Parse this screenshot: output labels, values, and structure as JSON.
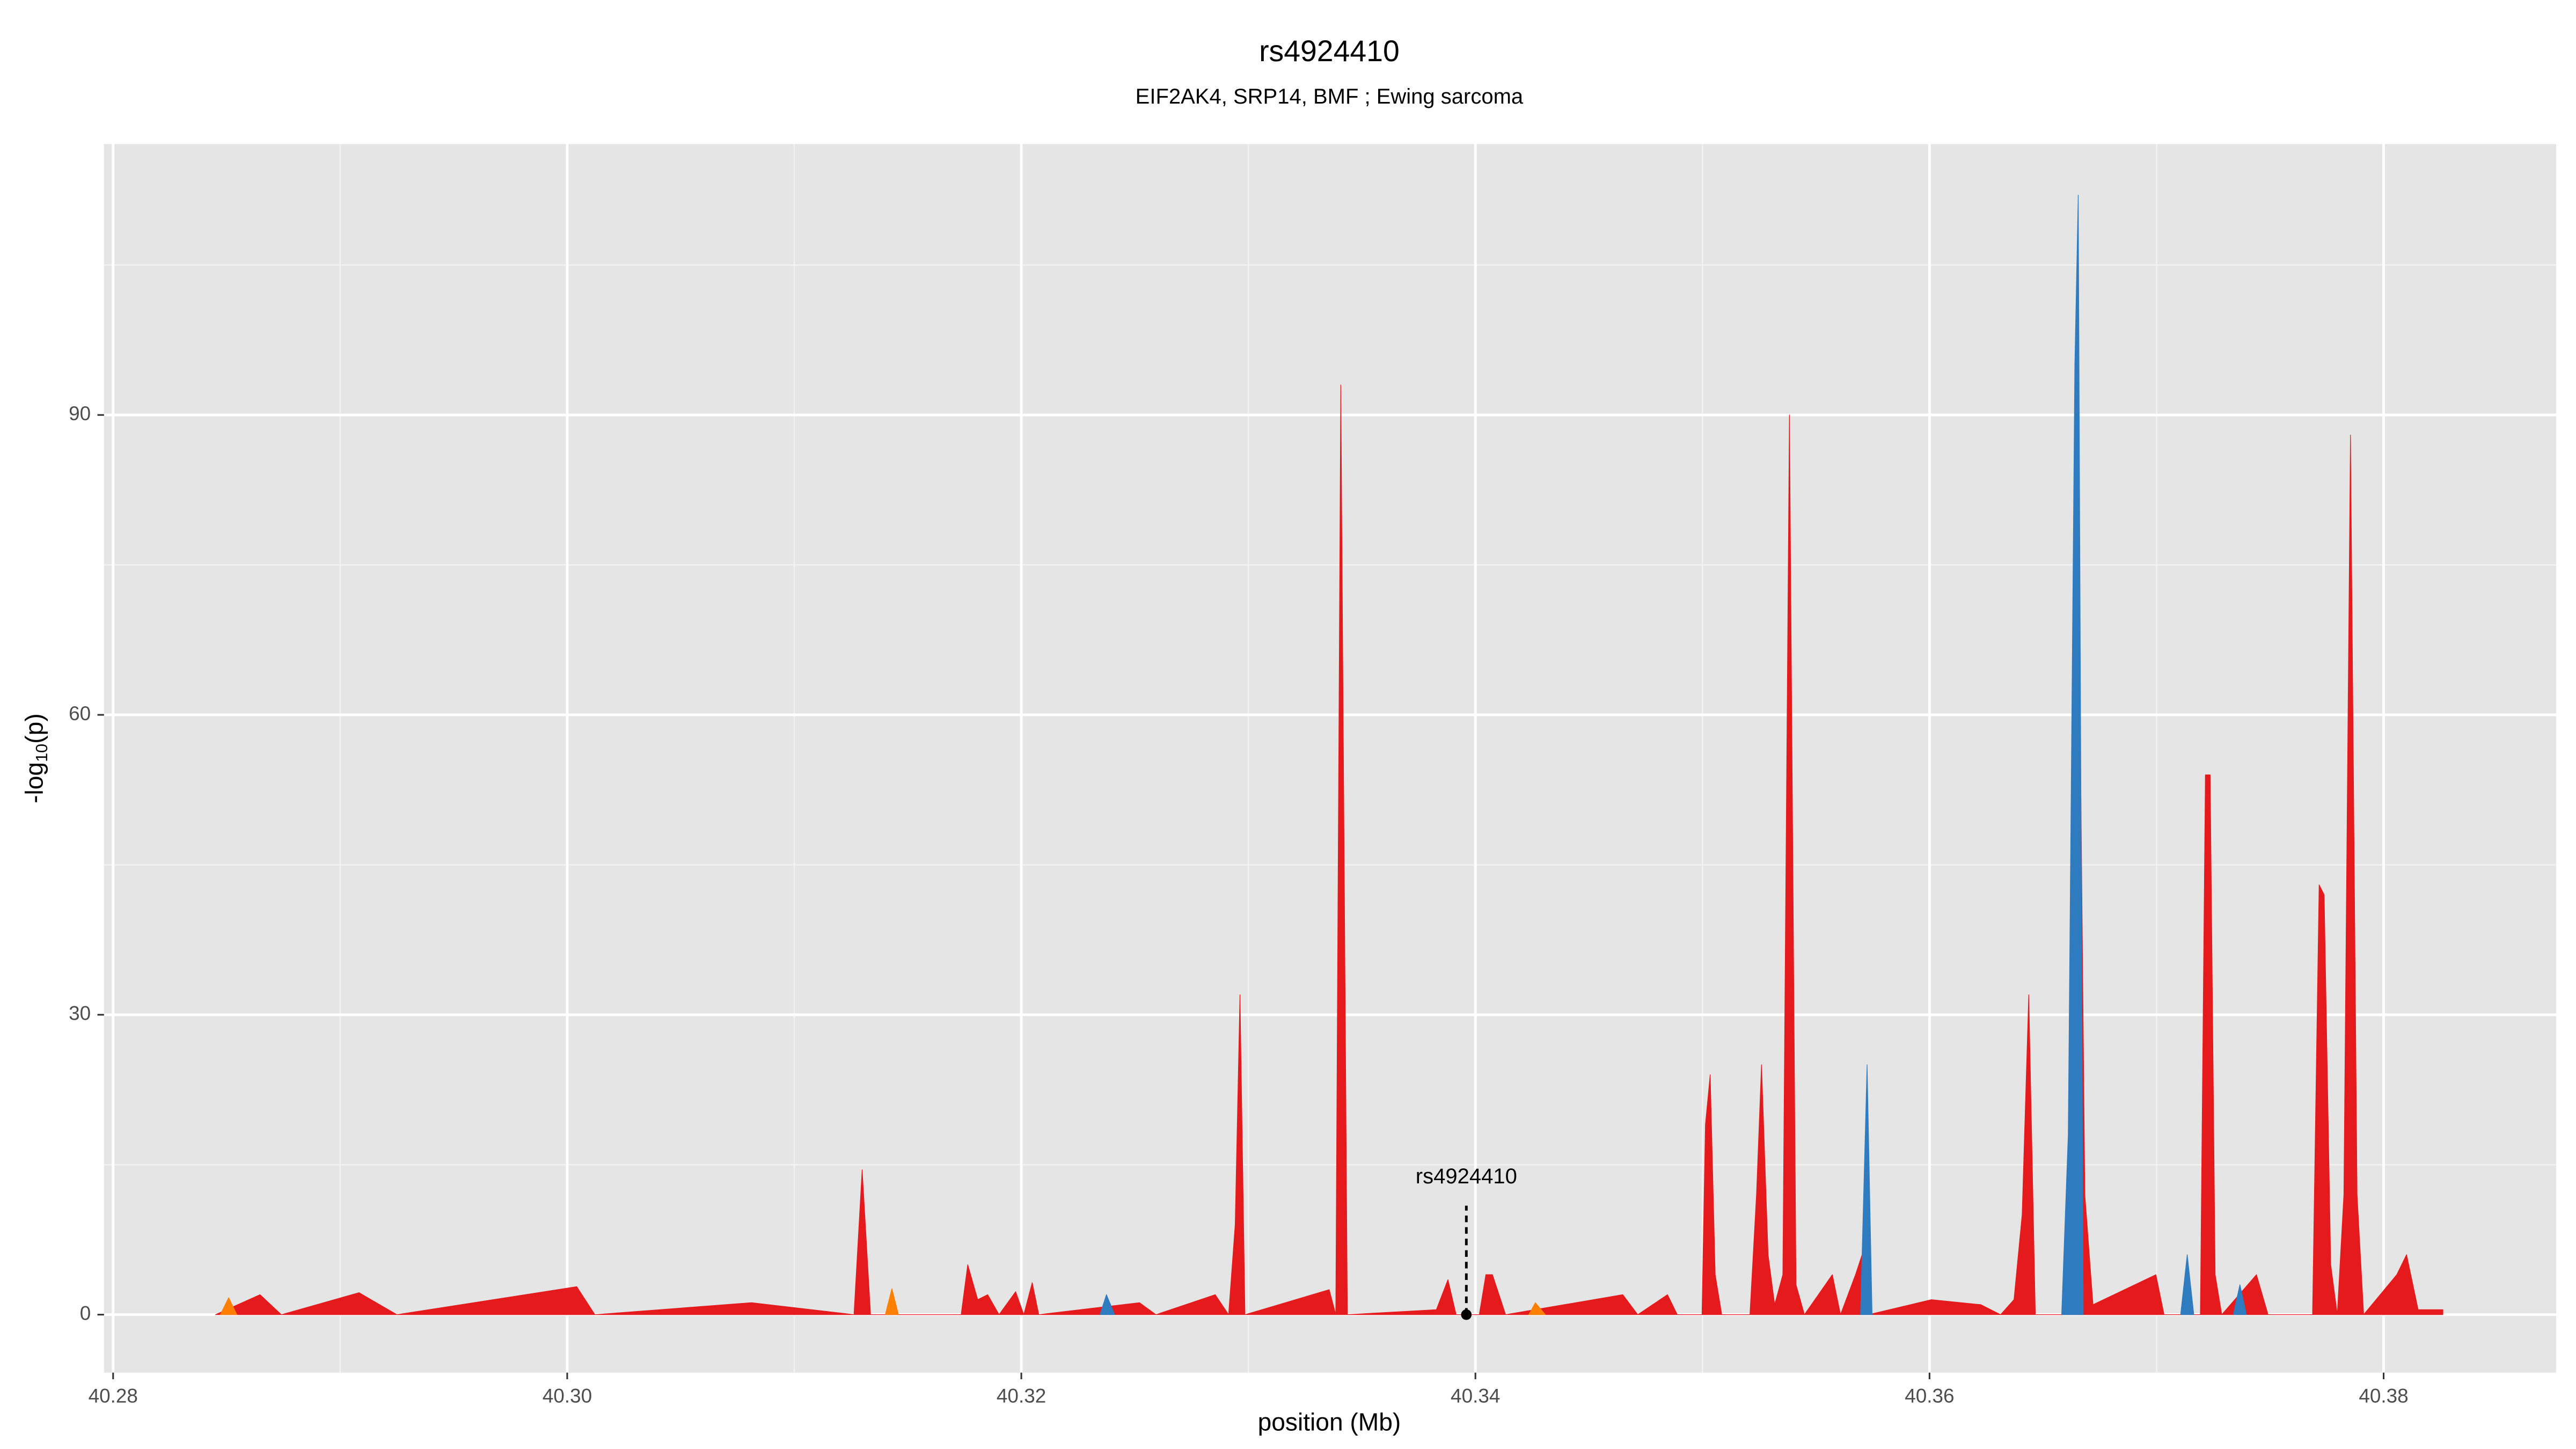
{
  "chart_data": {
    "type": "area",
    "title": "rs4924410",
    "subtitle": "EIF2AK4, SRP14, BMF ; Ewing sarcoma",
    "xlabel": "position (Mb)",
    "ylabel_parts": [
      "-log",
      "10",
      "(p)"
    ],
    "xlim": [
      40.2796,
      40.3876
    ],
    "ylim": [
      -5.8,
      117.1
    ],
    "xticks": [
      40.28,
      {
        "value": 40.3,
        "label": "40.30"
      },
      40.32,
      40.34,
      40.36,
      40.38
    ],
    "yticks": [
      0,
      30,
      60,
      90
    ],
    "x_minor_ticks": [
      40.29,
      40.31,
      40.33,
      40.35,
      40.37
    ],
    "y_minor_ticks": [
      15,
      45,
      75,
      105
    ],
    "grid": true,
    "series": [
      {
        "color": "#e41a1c",
        "x": [
          40.28451,
          40.28647,
          40.28741,
          40.29083,
          40.2925,
          40.30042,
          40.30122,
          40.30812,
          40.31263,
          40.31299,
          40.31336,
          40.31735,
          40.31764,
          40.31808,
          40.31852,
          40.31902,
          40.31975,
          40.32011,
          40.32048,
          40.32077,
          40.3252,
          40.32593,
          40.32854,
          40.32913,
          40.32942,
          40.32963,
          40.32985,
          40.33356,
          40.33385,
          40.33407,
          40.33436,
          40.33828,
          40.33879,
          40.33915,
          40.34017,
          40.34046,
          40.34075,
          40.34133,
          40.34649,
          40.34715,
          40.34846,
          40.34889,
          40.34998,
          40.35013,
          40.35034,
          40.35056,
          40.35085,
          40.35209,
          40.35238,
          40.3526,
          40.35289,
          40.35318,
          40.35354,
          40.35383,
          40.35412,
          40.35449,
          40.35572,
          40.35608,
          40.35674,
          40.35703,
          40.35732,
          40.36008,
          40.36226,
          40.36313,
          40.36372,
          40.36408,
          40.36437,
          40.36466,
          40.36619,
          40.36648,
          40.36684,
          40.3672,
          40.36997,
          40.37033,
          40.37193,
          40.37215,
          40.37236,
          40.37258,
          40.37287,
          40.3744,
          40.37491,
          40.37687,
          40.37716,
          40.37738,
          40.37767,
          40.37796,
          40.37825,
          40.37854,
          40.37883,
          40.37912,
          40.38058,
          40.38101,
          40.38152,
          40.38261
        ],
        "values": [
          0,
          2,
          0,
          2.2,
          0,
          2.8,
          0,
          1.2,
          0,
          14.5,
          0,
          0,
          5,
          1.5,
          2,
          0,
          2.3,
          0,
          3.2,
          0,
          1.2,
          0,
          2,
          0,
          9,
          32,
          0,
          2.5,
          0,
          93,
          0,
          0.5,
          3.5,
          0,
          0,
          4,
          4,
          0,
          2,
          0,
          2,
          0,
          0,
          19,
          24,
          4,
          0,
          0,
          12,
          25,
          6,
          1,
          4,
          90,
          3,
          0,
          4,
          0,
          4,
          6,
          0,
          1.5,
          1,
          0,
          1.5,
          10,
          32,
          0,
          0,
          95,
          12,
          1,
          4,
          0,
          0,
          54,
          54,
          4,
          0,
          4,
          0,
          0,
          43,
          42,
          5,
          0,
          12,
          88,
          12,
          0,
          4,
          6,
          0.5,
          0.5
        ]
      },
      {
        "color": "#2f7bbf",
        "x": [
          40.32346,
          40.32375,
          40.32411,
          null,
          40.35696,
          40.35725,
          40.35747,
          null,
          40.36582,
          40.36611,
          40.3664,
          40.36655,
          40.36677,
          null,
          40.37106,
          40.37135,
          40.37164,
          null,
          40.37338,
          40.37367,
          40.37396
        ],
        "values": [
          0,
          2,
          0,
          null,
          0,
          25,
          0,
          null,
          0,
          18,
          95,
          112,
          0,
          null,
          0,
          6,
          0,
          null,
          0,
          3,
          0
        ]
      },
      {
        "color": "#ff7f00",
        "x": [
          40.28472,
          40.28509,
          40.28545,
          null,
          40.31401,
          40.3143,
          40.31459,
          null,
          40.34235,
          40.34264,
          40.34308
        ],
        "values": [
          0,
          1.7,
          0,
          null,
          0,
          2.6,
          0,
          null,
          0,
          1.2,
          0
        ]
      }
    ],
    "annotation": {
      "text": "rs4924410",
      "x": 40.3396,
      "y": 0
    }
  }
}
